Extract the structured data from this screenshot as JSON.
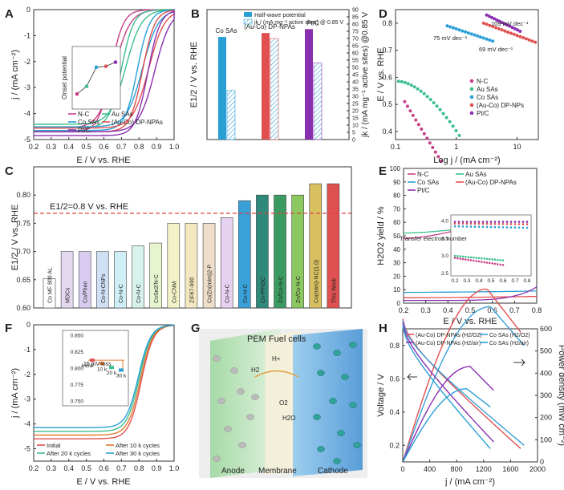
{
  "figure": {
    "panel_letters": [
      "A",
      "B",
      "C",
      "D",
      "E",
      "F",
      "G",
      "H"
    ]
  },
  "colors": {
    "nc": "#c8408a",
    "au": "#3cbf8f",
    "co": "#2a9fd6",
    "auco": "#e05050",
    "ptc": "#8a2fb0",
    "refline": "#e04040"
  },
  "chart_data": [
    {
      "panel": "A",
      "type": "line",
      "xlabel": "E / V vs. RHE",
      "ylabel": "j / (mA cm⁻²)",
      "xlim": [
        0.2,
        1.0
      ],
      "ylim": [
        -5,
        0
      ],
      "xticks": [
        "0.2",
        "0.3",
        "0.4",
        "0.5",
        "0.6",
        "0.7",
        "0.8",
        "0.9",
        "1.0"
      ],
      "yticks": [
        "0",
        "-1",
        "-2",
        "-3",
        "-4",
        "-5"
      ],
      "legend": [
        "N-C",
        "Au SAs",
        "Co SAs",
        "(Au-Co) DP-NPAs",
        "Pt/C"
      ],
      "series": [
        {
          "name": "N-C",
          "e_half": 0.64,
          "jl": -4.7
        },
        {
          "name": "Au SAs",
          "e_half": 0.7,
          "jl": -4.55
        },
        {
          "name": "Co SAs",
          "e_half": 0.79,
          "jl": -4.65
        },
        {
          "name": "(Au-Co) DP-NPAs",
          "e_half": 0.82,
          "jl": -4.7
        },
        {
          "name": "Pt/C",
          "e_half": 0.85,
          "jl": -4.85
        }
      ],
      "inset": {
        "ylabel": "Onset potential",
        "values": [
          0.2,
          0.35,
          0.72,
          0.74,
          0.82
        ]
      }
    },
    {
      "panel": "B",
      "type": "bar",
      "ylabel_left": "E1/2 / V vs. RHE",
      "ylabel_right": "jk / (mA mg⁻¹ active sites) @0.85 V",
      "legend": [
        "Half-wave potential",
        "jk / (mA mg⁻¹ active sites) @ 0.85 V"
      ],
      "categories": [
        "Co SAs",
        "(Au-Co) DP-NPAs",
        "Pt/C"
      ],
      "series": [
        {
          "name": "Half-wave potential",
          "values": [
            0.79,
            0.82,
            0.85
          ]
        },
        {
          "name": "jk",
          "values": [
            34,
            70,
            53
          ]
        }
      ],
      "yticks_right": [
        "0",
        "5",
        "10",
        "15",
        "20",
        "25",
        "30",
        "35",
        "40",
        "45",
        "50",
        "55",
        "60",
        "65",
        "70",
        "75",
        "80",
        "85",
        "90"
      ]
    },
    {
      "panel": "C",
      "type": "bar",
      "ylabel": "E1/2 / V vs. RHE",
      "ylim": [
        0.6,
        0.85
      ],
      "yticks": [
        "0.60",
        "0.65",
        "0.70",
        "0.75",
        "0.80"
      ],
      "reference": "E1/2=0.8 V vs. RHE",
      "categories": [
        "Co MF 800 AL",
        "MDCs",
        "Co/Phen",
        "Co-N-CNFs",
        "Co-N-C",
        "Co-N-C",
        "CoSe2/N-C",
        "Co-CNM",
        "ZIF67-900",
        "Co/Zn(mIm)2-P",
        "Co-N-C",
        "Co-N-C",
        "Co-P/NSC",
        "Zn/Co-N-C",
        "Zn/Co-N-C",
        "Co(mIm)-NC(1.0)",
        "This Work"
      ],
      "values": [
        0.652,
        0.7,
        0.7,
        0.7,
        0.7,
        0.71,
        0.715,
        0.75,
        0.75,
        0.75,
        0.76,
        0.79,
        0.8,
        0.8,
        0.8,
        0.82,
        0.82
      ]
    },
    {
      "panel": "D",
      "type": "scatter",
      "xlabel": "Log j / (mA cm⁻²)",
      "ylabel": "E / V vs. RHE",
      "xticks": [
        "0.1",
        "1",
        "10"
      ],
      "yticks": [
        "0.4",
        "0.5",
        "0.6",
        "0.7",
        "0.8"
      ],
      "legend": [
        "N-C",
        "Au SAs",
        "Co SAs",
        "(Au-Co) DP-NPs",
        "Pt/C"
      ],
      "annotations": [
        "75 mV dec⁻¹",
        "109 mV dec⁻¹",
        "69 mV dec⁻¹"
      ]
    },
    {
      "panel": "E",
      "type": "line",
      "xlabel": "E / V vs. RHE",
      "ylabel": "H2O2 yield / %",
      "xticks": [
        "0.2",
        "0.3",
        "0.4",
        "0.5",
        "0.6",
        "0.7",
        "0.8"
      ],
      "yticks": [
        "0",
        "10",
        "20",
        "30",
        "40",
        "50",
        "60",
        "70",
        "80",
        "90",
        "100"
      ],
      "legend": [
        "N-C",
        "Au SAs",
        "Co SAs",
        "(Au-Co) DP-NPAs",
        "Pt/C"
      ],
      "inset": {
        "ylabel": "Transfer electron number",
        "yticks": [
          "2.5",
          "3.0",
          "3.5",
          "4.0"
        ],
        "xticks": [
          "0.2",
          "0.3",
          "0.4",
          "0.5",
          "0.6",
          "0.7",
          "0.8"
        ]
      }
    },
    {
      "panel": "F",
      "type": "line",
      "xlabel": "E / V vs. RHE",
      "ylabel": "j / (mA cm⁻²)",
      "xticks": [
        "0.2",
        "0.3",
        "0.4",
        "0.5",
        "0.6",
        "0.7",
        "0.8",
        "0.9",
        "1.0"
      ],
      "yticks": [
        "0",
        "-1",
        "-2",
        "-3",
        "-4",
        "-5"
      ],
      "legend": [
        "Initial",
        "After 10 k cycles",
        "After 20 k cycles",
        "After 30 k cycles"
      ],
      "inset": {
        "yticks": [
          "0.850",
          "0.825",
          "0.800",
          "0.775",
          "0.750"
        ],
        "labels": [
          "Initial",
          "10 k",
          "20 k",
          "30 k"
        ],
        "note": "15 mV loss",
        "values": [
          0.812,
          0.807,
          0.801,
          0.797
        ]
      }
    },
    {
      "panel": "H",
      "type": "line",
      "xlabel": "j / (mA cm⁻²)",
      "ylabel_left": "Voltage / V",
      "ylabel_right": "Power density (mW cm⁻²)",
      "xticks": [
        "0",
        "400",
        "800",
        "1200",
        "1600",
        "2000"
      ],
      "yticks_left": [
        "0.2",
        "0.4",
        "0.6",
        "0.8"
      ],
      "yticks_right": [
        "0",
        "100",
        "200",
        "300",
        "400",
        "500",
        "600"
      ],
      "legend": [
        "(Au-Co) DP-NPAs (H2/O2)",
        "Co SAs (H2/O2)",
        "(Au-Co) DP-NPAs (H2/air)",
        "Co SAs (H2/air)"
      ]
    }
  ],
  "panel_g": {
    "title": "PEM Fuel cells",
    "labels": [
      "Anode",
      "Membrane",
      "Cathode"
    ],
    "species": [
      "H2",
      "H+",
      "O2",
      "H2O"
    ]
  }
}
